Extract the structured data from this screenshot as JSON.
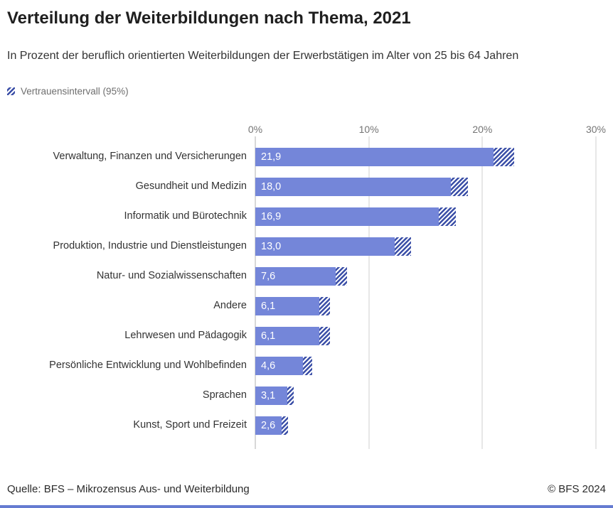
{
  "header": {
    "title": "Verteilung der Weiterbildungen nach Thema, 2021",
    "subtitle": "In Prozent der beruflich orientierten Weiterbildungen der Erwerbstätigen im Alter von 25 bis 64 Jahren"
  },
  "chart_data": {
    "type": "bar",
    "orientation": "horizontal",
    "title": "Verteilung der Weiterbildungen nach Thema, 2021",
    "legend": "Vertrauensintervall (95%)",
    "legend_position": "top-left",
    "grid": true,
    "xlim": [
      0,
      30
    ],
    "x_ticks": [
      "0%",
      "10%",
      "20%",
      "30%"
    ],
    "categories": [
      "Verwaltung, Finanzen und Versicherungen",
      "Gesundheit und Medizin",
      "Informatik und Bürotechnik",
      "Produktion, Industrie und Dienstleistungen",
      "Natur- und Sozialwissenschaften",
      "Andere",
      "Lehrwesen und Pädagogik",
      "Persönliche Entwicklung und Wohlbefinden",
      "Sprachen",
      "Kunst, Sport und Freizeit"
    ],
    "values": [
      21.9,
      18.0,
      16.9,
      13.0,
      7.6,
      6.1,
      6.1,
      4.6,
      3.1,
      2.6
    ],
    "value_labels": [
      "21,9",
      "18,0",
      "16,9",
      "13,0",
      "7,6",
      "6,1",
      "6,1",
      "4,6",
      "3,1",
      "2,6"
    ],
    "ci_halfwidth": [
      0.9,
      0.75,
      0.75,
      0.7,
      0.5,
      0.45,
      0.45,
      0.4,
      0.3,
      0.3
    ]
  },
  "footer": {
    "source": "Quelle: BFS – Mikrozensus Aus- und Weiterbildung",
    "copyright": "© BFS 2024"
  },
  "colors": {
    "bar": "#7486d9",
    "ci_hatch": "#3b4fa7",
    "grid": "#cfcfcf",
    "axis_zero": "#b0b0b0",
    "bottom_line": "#657bd1"
  }
}
